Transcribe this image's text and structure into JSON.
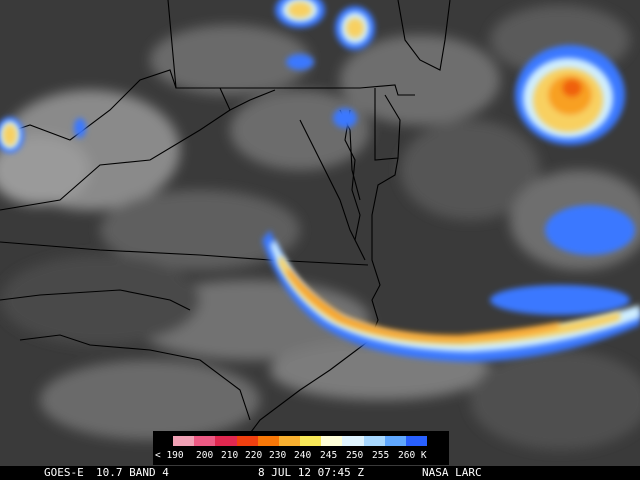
{
  "footer": {
    "satellite": "GOES-E",
    "band": "10.7 BAND 4",
    "datetime": "8 JUL 12 07:45 Z",
    "credit": "NASA LARC"
  },
  "colorbar": {
    "unit": "K",
    "labels": [
      "< 190",
      "200",
      "210",
      "220",
      "230",
      "240",
      "245",
      "250",
      "255",
      "260 K"
    ],
    "colors": [
      "#f0a0b4",
      "#ec5a84",
      "#e02850",
      "#f04010",
      "#f87808",
      "#f8b030",
      "#f8e858",
      "#ffffd8",
      "#e0f4ff",
      "#a8d8ff",
      "#60a8ff",
      "#2860ff"
    ]
  }
}
